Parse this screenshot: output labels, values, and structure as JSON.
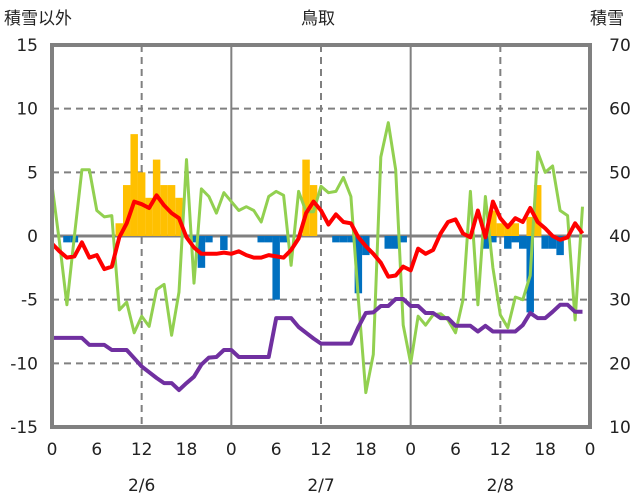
{
  "chart_data": {
    "type": "bar+line",
    "title": "鳥取",
    "left_axis_label": "積雪以外",
    "right_axis_label": "積雪",
    "left_ylim": [
      -15,
      15
    ],
    "left_ticks": [
      "15",
      "10",
      "5",
      "0",
      "-5",
      "-10",
      "-15"
    ],
    "right_ylim": [
      10,
      70
    ],
    "right_ticks": [
      "70",
      "60",
      "50",
      "40",
      "30",
      "20",
      "10"
    ],
    "x_ticks": [
      "0",
      "6",
      "12",
      "18",
      "0",
      "6",
      "12",
      "18",
      "0",
      "6",
      "12",
      "18",
      "0"
    ],
    "date_labels": [
      "2/6",
      "2/7",
      "2/8"
    ],
    "hours": 72,
    "bars": [
      {
        "color": "#FFC000",
        "axis": "left",
        "values": {
          "9": 1,
          "10": 4,
          "11": 8,
          "12": 5,
          "13": 3,
          "14": 6,
          "15": 4,
          "16": 4,
          "17": 3,
          "34": 6,
          "35": 4,
          "59": 2,
          "60": 1,
          "61": 1,
          "62": 1,
          "64": 1.5,
          "65": 4
        }
      },
      {
        "color": "#0070C0",
        "axis": "left",
        "values": {
          "2": -0.5,
          "3": -0.5,
          "19": -0.5,
          "20": -2.5,
          "21": -0.5,
          "23": -1.1,
          "28": -0.5,
          "29": -0.5,
          "30": -5,
          "31": -0.5,
          "38": -0.5,
          "39": -0.5,
          "40": -0.5,
          "41": -4.5,
          "42": -1.5,
          "45": -1,
          "46": -1,
          "47": -0.5,
          "58": -1,
          "59": -0.5,
          "61": -1,
          "62": -0.5,
          "63": -1,
          "64": -6,
          "66": -1,
          "67": -1,
          "68": -1.5
        }
      }
    ],
    "lines": [
      {
        "color": "#92D050",
        "axis": "left",
        "values": [
          4.0,
          -0.5,
          -5.4,
          0,
          5.2,
          5.2,
          2.0,
          1.5,
          1.6,
          -5.8,
          -5.2,
          -7.6,
          -6.3,
          -7.1,
          -4.2,
          -3.8,
          -7.8,
          -4.4,
          6.0,
          -3.7,
          3.7,
          3.1,
          1.8,
          3.4,
          2.7,
          2.0,
          2.3,
          2.0,
          1.1,
          3.1,
          3.5,
          3.2,
          -2.3,
          3.5,
          1.9,
          1.9,
          3.9,
          3.4,
          3.5,
          4.6,
          3.1,
          -5.0,
          -12.3,
          -9.3,
          6.2,
          8.9,
          5.2,
          -7.0,
          -10.0,
          -6.3,
          -7.0,
          -6.2,
          -6.1,
          -6.6,
          -7.6,
          -5.0,
          3.5,
          -5.4,
          3.1,
          -2.5,
          -6.2,
          -7.2,
          -4.8,
          -5.0,
          -3.1,
          6.6,
          5.0,
          5.5,
          2.0,
          1.6,
          -6.6,
          2.3
        ]
      },
      {
        "color": "#FF0000",
        "axis": "left",
        "values": [
          -0.6,
          -1.2,
          -1.7,
          -1.6,
          -0.5,
          -1.7,
          -1.5,
          -2.6,
          -2.4,
          -0.1,
          1.0,
          2.7,
          2.5,
          2.2,
          3.2,
          2.4,
          1.8,
          1.4,
          -0.1,
          -0.9,
          -1.4,
          -1.4,
          -1.4,
          -1.3,
          -1.4,
          -1.2,
          -1.5,
          -1.7,
          -1.7,
          -1.5,
          -1.6,
          -1.7,
          -1.1,
          -0.2,
          1.8,
          2.7,
          2.0,
          0.9,
          1.7,
          1.1,
          1.0,
          -0.1,
          -0.8,
          -1.4,
          -2.1,
          -3.2,
          -3.1,
          -2.4,
          -2.7,
          -1.0,
          -1.4,
          -1.1,
          0.2,
          1.1,
          1.3,
          0.2,
          -0.1,
          2.0,
          -0.1,
          2.7,
          1.4,
          0.7,
          1.4,
          1.1,
          2.2,
          1.1,
          0.6,
          0,
          -0.3,
          -0.1,
          1.0,
          0.2
        ]
      },
      {
        "color": "#7030A0",
        "axis": "right",
        "values": [
          24,
          24,
          24,
          24,
          24,
          22.9,
          22.9,
          22.9,
          22.1,
          22.1,
          22.1,
          20.8,
          19.5,
          18.6,
          17.7,
          16.9,
          16.9,
          15.8,
          16.9,
          17.9,
          19.8,
          20.9,
          21.0,
          22.1,
          22.1,
          21.0,
          21.0,
          21.0,
          21.0,
          21.0,
          27.1,
          27.1,
          27.1,
          25.7,
          24.8,
          23.9,
          23.1,
          23.1,
          23.1,
          23.1,
          23.1,
          25.7,
          27.9,
          28.0,
          29.0,
          29.0,
          30.1,
          30.1,
          29.0,
          29.0,
          27.9,
          27.9,
          27.1,
          27.1,
          25.9,
          25.9,
          25.9,
          25.0,
          25.9,
          25.0,
          25.0,
          25.0,
          25.0,
          26.0,
          27.9,
          27.1,
          27.1,
          28.1,
          29.2,
          29.2,
          28.1,
          28.1
        ]
      }
    ]
  }
}
